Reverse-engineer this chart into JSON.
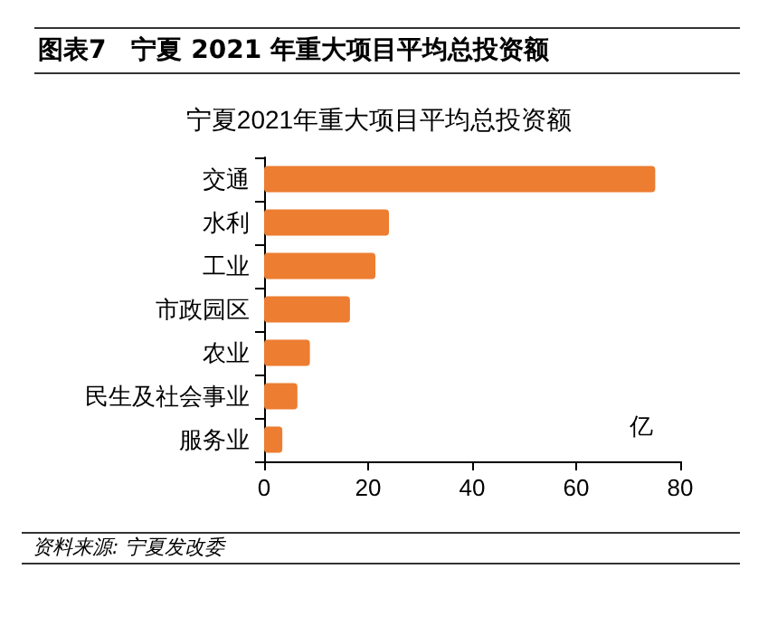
{
  "chart_data": {
    "type": "bar",
    "orientation": "horizontal",
    "title": "图表7　宁夏 2021 年重大项目平均总投资额",
    "subtitle": "宁夏2021年重大项目平均总投资额",
    "xlabel": "亿",
    "categories": [
      "交通",
      "水利",
      "工业",
      "市政园区",
      "农业",
      "民生及社会事业",
      "服务业"
    ],
    "values": [
      75.2,
      24,
      21.4,
      16.5,
      8.8,
      6.4,
      3.5
    ],
    "color": "#ed7d31",
    "xlim": [
      0,
      80
    ],
    "xticks": [
      0,
      20,
      40,
      60,
      80
    ],
    "grid": false,
    "annotations": [
      "资料来源: 宁夏发改委"
    ]
  }
}
